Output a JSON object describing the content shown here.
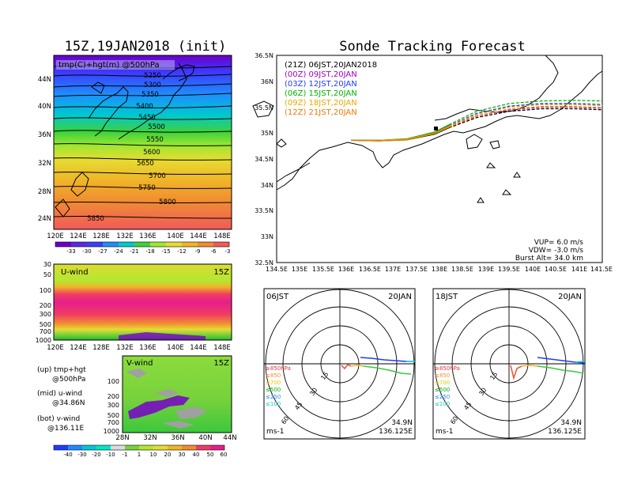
{
  "left_title": "15Z,19JAN2018 (init)",
  "right_title": "Sonde Tracking Forecast",
  "map_panel": {
    "overlay_label": "tmp(C)+hgt(m) @500hPa",
    "y_ticks": [
      "44N",
      "40N",
      "36N",
      "32N",
      "28N",
      "24N"
    ],
    "x_ticks": [
      "120E",
      "124E",
      "128E",
      "132E",
      "136E",
      "140E",
      "144E",
      "148E"
    ],
    "contour_labels": [
      "5250",
      "5300",
      "5350",
      "5400",
      "5450",
      "5500",
      "5550",
      "5600",
      "5650",
      "5700",
      "5750",
      "5800",
      "5850"
    ],
    "colorbar_ticks": [
      "-33",
      "-30",
      "-27",
      "-24",
      "-21",
      "-18",
      "-15",
      "-12",
      "-9",
      "-6",
      "-3"
    ]
  },
  "uwind_panel": {
    "label": "U-wind",
    "time": "15Z",
    "y_ticks": [
      "30",
      "50",
      "100",
      "200",
      "300",
      "500",
      "700",
      "1000"
    ],
    "x_ticks": [
      "120E",
      "124E",
      "128E",
      "132E",
      "136E",
      "140E",
      "144E",
      "148E"
    ]
  },
  "vwind_panel": {
    "label": "V-wind",
    "time": "15Z",
    "y_ticks": [
      "100",
      "200",
      "300",
      "500",
      "700",
      "1000"
    ],
    "x_ticks": [
      "28N",
      "32N",
      "36N",
      "40N",
      "44N"
    ],
    "colorbar_ticks": [
      "-40",
      "-30",
      "-20",
      "-10",
      "-1",
      "1",
      "10",
      "20",
      "30",
      "40",
      "50",
      "60"
    ]
  },
  "legend_notes": [
    {
      "a": "(up) tmp+hgt",
      "b": "@500hPa"
    },
    {
      "a": "(mid) u-wind",
      "b": "@34.86N"
    },
    {
      "a": "(bot) v-wind",
      "b": "@136.11E"
    }
  ],
  "track_panel": {
    "y_ticks": [
      "36.5N",
      "36N",
      "35.5N",
      "35N",
      "34.5N",
      "34N",
      "33.5N",
      "33N",
      "32.5N"
    ],
    "x_ticks": [
      "134.5E",
      "135E",
      "135.5E",
      "136E",
      "136.5E",
      "137E",
      "137.5E",
      "138E",
      "138.5E",
      "139E",
      "139.5E",
      "140E",
      "140.5E",
      "141E",
      "141.5E"
    ],
    "legend": [
      {
        "label": "(21Z)  06JST,20JAN2018",
        "color": "#000000"
      },
      {
        "label": "(00Z)  09JST,20JAN",
        "color": "#a000c8"
      },
      {
        "label": "(03Z)  12JST,20JAN",
        "color": "#1e3cff"
      },
      {
        "label": "(06Z)  15JST,20JAN",
        "color": "#00b400"
      },
      {
        "label": "(09Z)  18JST,20JAN",
        "color": "#e6aa00"
      },
      {
        "label": "(12Z)  21JST,20JAN",
        "color": "#f07800"
      }
    ],
    "info": [
      "VUP=  6.0 m/s",
      "VDW= -3.0 m/s",
      "Burst Alt= 34.0 km"
    ]
  },
  "hodo_left": {
    "time": "06JST",
    "date": "20JAN",
    "ring_labels": [
      "15",
      "30",
      "45",
      "60"
    ],
    "level_labels": [
      "≥850hPa",
      "≤850",
      "≤700",
      "≤500",
      "≤250",
      "≤100"
    ],
    "unit": "ms-1",
    "lat": "34.9N",
    "lon": "136.125E"
  },
  "hodo_right": {
    "time": "18JST",
    "date": "20JAN",
    "ring_labels": [
      "15",
      "30",
      "45",
      "60"
    ],
    "level_labels": [
      "≥850hPa",
      "≤850",
      "≤700",
      "≤500",
      "≤250",
      "≤100"
    ],
    "unit": "ms-1",
    "lat": "34.9N",
    "lon": "136.125E"
  },
  "chart_data": {
    "type": "line",
    "title": "Sonde Tracking Forecast",
    "xlabel": "",
    "ylabel": "",
    "xlim": [
      134.5,
      141.5
    ],
    "ylim": [
      32.5,
      36.5
    ],
    "grid": false,
    "legend_position": "top-left",
    "launch_point": {
      "lon": 136.1,
      "lat": 34.86
    },
    "series": [
      {
        "name": "(21Z)  06JST,20JAN2018",
        "color": "#000000",
        "x": [
          136.1,
          136.7,
          137.3,
          137.9,
          138.2,
          138.8,
          139.5,
          140.2,
          140.9,
          141.5
        ],
        "y": [
          34.86,
          34.85,
          34.87,
          34.98,
          35.1,
          35.3,
          35.42,
          35.47,
          35.47,
          35.45
        ]
      },
      {
        "name": "(00Z)  09JST,20JAN",
        "color": "#a000c8",
        "x": [
          136.1,
          136.7,
          137.3,
          137.9,
          138.2,
          138.8,
          139.5,
          140.2,
          140.9,
          141.5
        ],
        "y": [
          34.86,
          34.86,
          34.88,
          35.0,
          35.12,
          35.33,
          35.45,
          35.5,
          35.5,
          35.48
        ]
      },
      {
        "name": "(03Z)  12JST,20JAN",
        "color": "#1e3cff",
        "x": [
          136.1,
          136.7,
          137.3,
          137.9,
          138.2,
          138.8,
          139.5,
          140.2,
          140.9,
          141.5
        ],
        "y": [
          34.86,
          34.86,
          34.88,
          35.01,
          35.14,
          35.38,
          35.52,
          35.57,
          35.57,
          35.55
        ]
      },
      {
        "name": "(06Z)  15JST,20JAN",
        "color": "#00b400",
        "x": [
          136.1,
          136.7,
          137.3,
          137.9,
          138.2,
          138.8,
          139.5,
          140.2,
          140.9,
          141.5
        ],
        "y": [
          34.86,
          34.86,
          34.89,
          35.02,
          35.16,
          35.42,
          35.57,
          35.62,
          35.63,
          35.62
        ]
      },
      {
        "name": "(09Z)  18JST,20JAN",
        "color": "#e6aa00",
        "x": [
          136.1,
          136.7,
          137.3,
          137.9,
          138.2,
          138.8,
          139.5,
          140.2,
          140.9,
          141.5
        ],
        "y": [
          34.86,
          34.86,
          34.88,
          35.0,
          35.13,
          35.36,
          35.5,
          35.55,
          35.55,
          35.53
        ]
      },
      {
        "name": "(12Z)  21JST,20JAN",
        "color": "#f07800",
        "x": [
          136.1,
          136.7,
          137.3,
          137.9,
          138.2,
          138.8,
          139.5,
          140.2,
          140.9,
          141.5
        ],
        "y": [
          34.86,
          34.85,
          34.87,
          34.99,
          35.11,
          35.33,
          35.46,
          35.51,
          35.51,
          35.49
        ]
      }
    ]
  }
}
